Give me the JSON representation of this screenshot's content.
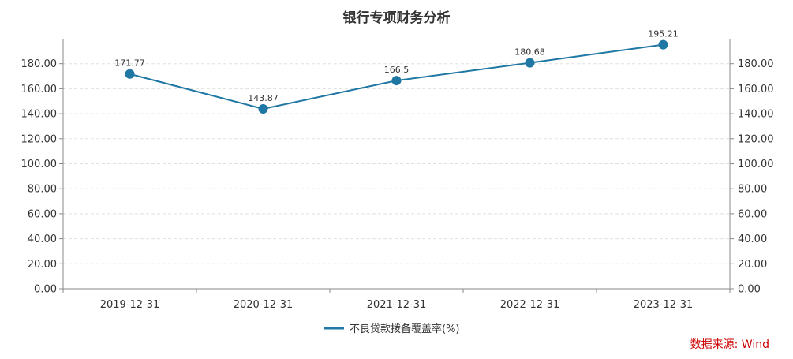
{
  "chart_data": {
    "type": "line",
    "title": "银行专项财务分析",
    "categories": [
      "2019-12-31",
      "2020-12-31",
      "2021-12-31",
      "2022-12-31",
      "2023-12-31"
    ],
    "series": [
      {
        "name": "不良贷款拨备覆盖率(%)",
        "values": [
          171.77,
          143.87,
          166.5,
          180.68,
          195.21
        ],
        "value_labels": [
          "171.77",
          "143.87",
          "166.5",
          "180.68",
          "195.21"
        ]
      }
    ],
    "ylim": [
      0,
      200
    ],
    "y_ticks": [
      "0.00",
      "20.00",
      "40.00",
      "60.00",
      "80.00",
      "100.00",
      "120.00",
      "140.00",
      "160.00",
      "180.00"
    ],
    "grid": "horizontal dashed",
    "legend_position": "bottom-center",
    "colors": {
      "series": "#1f77a4",
      "axis": "#888888",
      "grid": "#e0e0e0",
      "source": "#cc0000"
    }
  },
  "source_text": "数据来源: Wind"
}
